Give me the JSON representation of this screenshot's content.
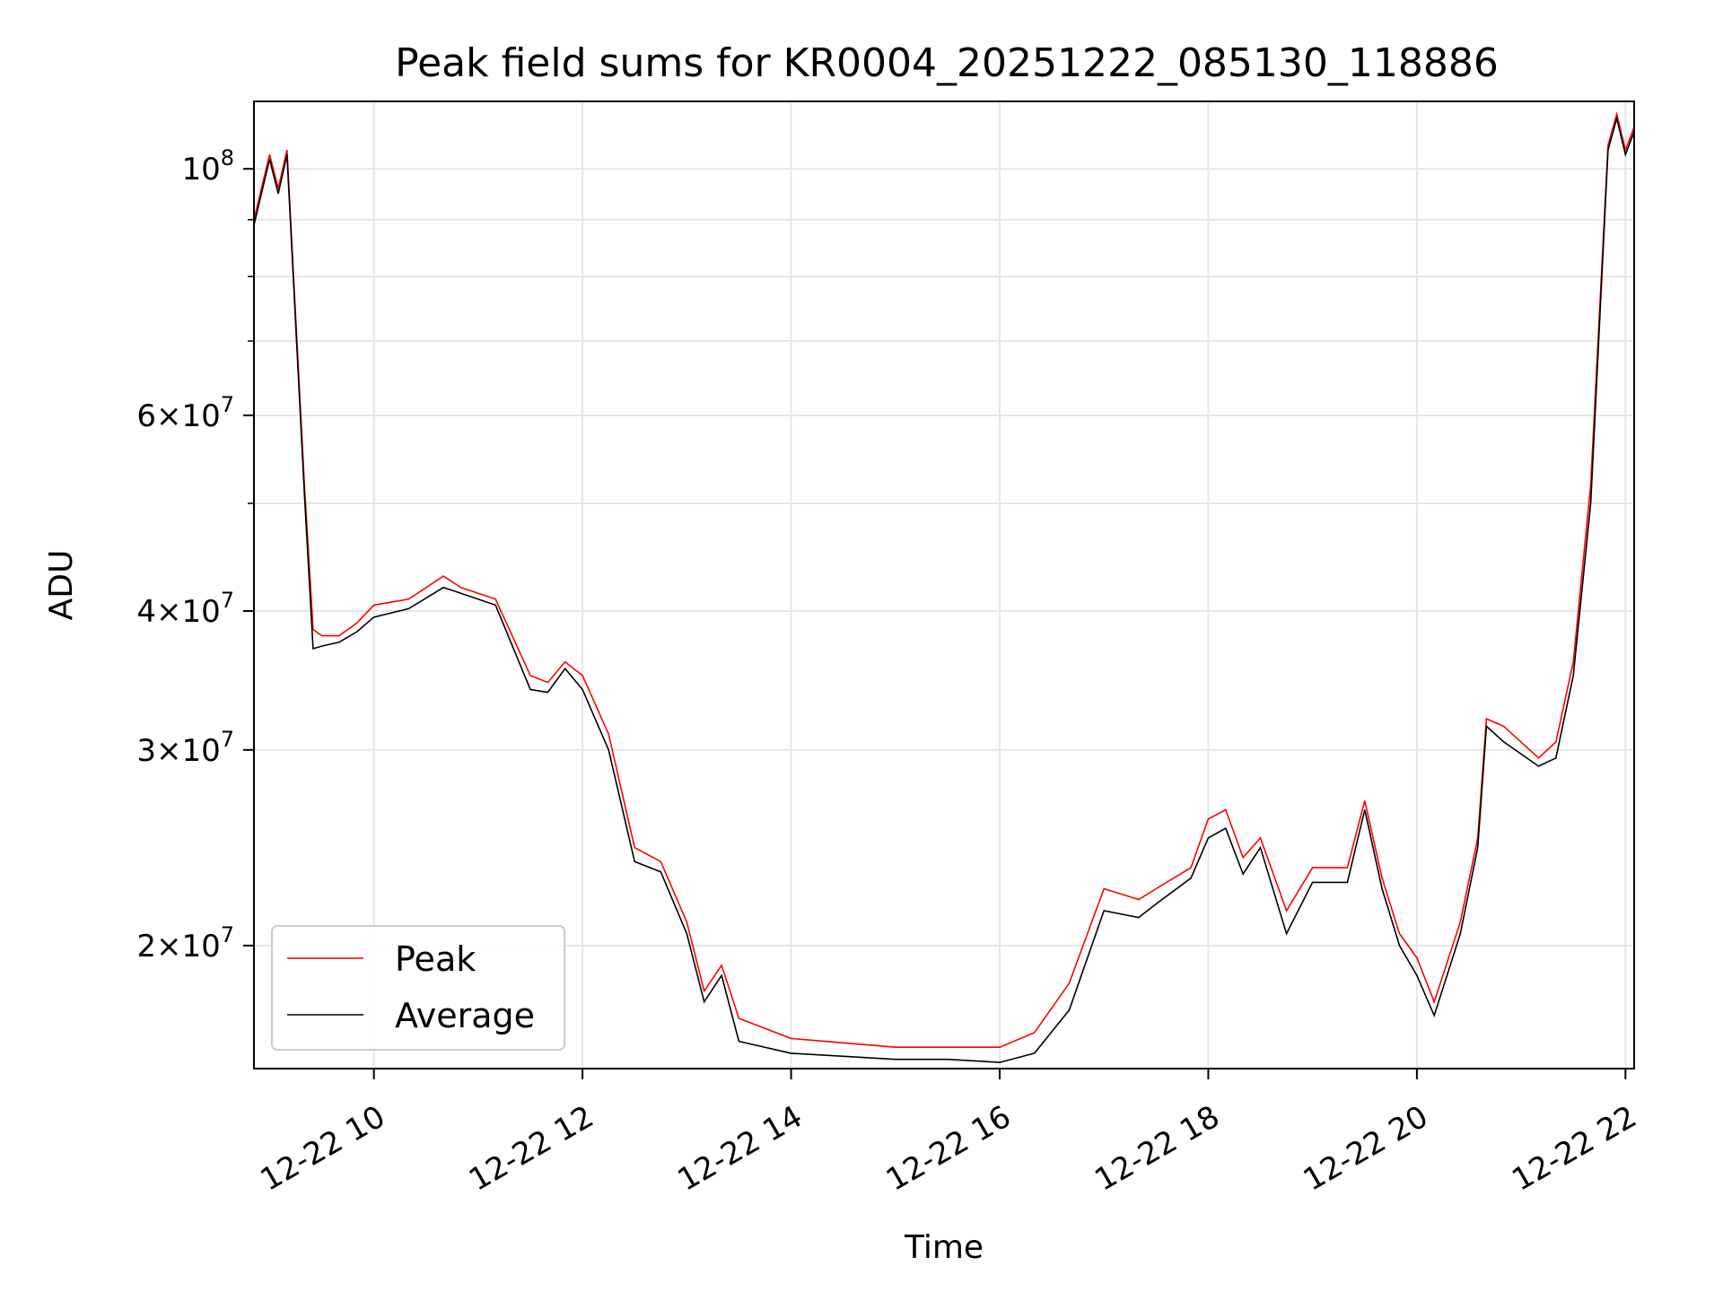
{
  "chart_data": {
    "type": "line",
    "title": "Peak field sums for KR0004_20251222_085130_118886",
    "xlabel": "Time",
    "ylabel": "ADU",
    "yscale": "log",
    "xlim": [
      "12-22 08:51",
      "12-22 22:05"
    ],
    "ylim": [
      15500000,
      115000000
    ],
    "grid": true,
    "legend": "lower-left",
    "x_ticks": [
      {
        "x": "12-22 10:00",
        "label": "12-22 10"
      },
      {
        "x": "12-22 12:00",
        "label": "12-22 12"
      },
      {
        "x": "12-22 14:00",
        "label": "12-22 14"
      },
      {
        "x": "12-22 16:00",
        "label": "12-22 16"
      },
      {
        "x": "12-22 18:00",
        "label": "12-22 18"
      },
      {
        "x": "12-22 20:00",
        "label": "12-22 20"
      },
      {
        "x": "12-22 22:00",
        "label": "12-22 22"
      }
    ],
    "y_ticks": [
      {
        "value": 100000000,
        "base": "10",
        "exp": "8",
        "mant": ""
      },
      {
        "value": 60000000,
        "base": "10",
        "exp": "7",
        "mant": "6"
      },
      {
        "value": 40000000,
        "base": "10",
        "exp": "7",
        "mant": "4"
      },
      {
        "value": 30000000,
        "base": "10",
        "exp": "7",
        "mant": "3"
      },
      {
        "value": 20000000,
        "base": "10",
        "exp": "7",
        "mant": "2"
      }
    ],
    "y_minor_ticks": [
      50000000,
      70000000,
      80000000,
      90000000
    ],
    "x": [
      "12-22 08:51",
      "12-22 09:00",
      "12-22 09:05",
      "12-22 09:10",
      "12-22 09:20",
      "12-22 09:25",
      "12-22 09:30",
      "12-22 09:40",
      "12-22 09:50",
      "12-22 10:00",
      "12-22 10:20",
      "12-22 10:40",
      "12-22 10:50",
      "12-22 11:10",
      "12-22 11:30",
      "12-22 11:40",
      "12-22 11:50",
      "12-22 12:00",
      "12-22 12:15",
      "12-22 12:30",
      "12-22 12:45",
      "12-22 13:00",
      "12-22 13:10",
      "12-22 13:20",
      "12-22 13:30",
      "12-22 14:00",
      "12-22 15:00",
      "12-22 15:30",
      "12-22 16:00",
      "12-22 16:20",
      "12-22 16:40",
      "12-22 17:00",
      "12-22 17:20",
      "12-22 17:30",
      "12-22 17:50",
      "12-22 18:00",
      "12-22 18:10",
      "12-22 18:20",
      "12-22 18:30",
      "12-22 18:45",
      "12-22 19:00",
      "12-22 19:20",
      "12-22 19:30",
      "12-22 19:40",
      "12-22 19:50",
      "12-22 20:00",
      "12-22 20:10",
      "12-22 20:25",
      "12-22 20:35",
      "12-22 20:40",
      "12-22 20:50",
      "12-22 21:10",
      "12-22 21:20",
      "12-22 21:30",
      "12-22 21:40",
      "12-22 21:50",
      "12-22 21:55",
      "12-22 22:00",
      "12-22 22:05"
    ],
    "series": [
      {
        "name": "Peak",
        "color": "#ff0000",
        "values": [
          90000000,
          103000000,
          96000000,
          104000000,
          52000000,
          38500000,
          38000000,
          38000000,
          39000000,
          40500000,
          41000000,
          43000000,
          42000000,
          41000000,
          35000000,
          34500000,
          36000000,
          35000000,
          31000000,
          24500000,
          23800000,
          21000000,
          18200000,
          19200000,
          17200000,
          16500000,
          16200000,
          16200000,
          16200000,
          16700000,
          18500000,
          22500000,
          22000000,
          22500000,
          23500000,
          26000000,
          26500000,
          24000000,
          25000000,
          21500000,
          23500000,
          23500000,
          27000000,
          23000000,
          20500000,
          19500000,
          17800000,
          21000000,
          25000000,
          32000000,
          31500000,
          29500000,
          30500000,
          36000000,
          52000000,
          105000000,
          112000000,
          104000000,
          109000000
        ]
      },
      {
        "name": "Average",
        "color": "#000000",
        "values": [
          89000000,
          102000000,
          95000000,
          103000000,
          51000000,
          37000000,
          37200000,
          37500000,
          38300000,
          39500000,
          40200000,
          42000000,
          41500000,
          40500000,
          34000000,
          33800000,
          35500000,
          34000000,
          30000000,
          23800000,
          23300000,
          20500000,
          17800000,
          18800000,
          16400000,
          16000000,
          15800000,
          15800000,
          15700000,
          16000000,
          17500000,
          21500000,
          21200000,
          21800000,
          23000000,
          25000000,
          25500000,
          23200000,
          24500000,
          20500000,
          22800000,
          22800000,
          26500000,
          22500000,
          20000000,
          18800000,
          17300000,
          20500000,
          24500000,
          31500000,
          30500000,
          29000000,
          29500000,
          35000000,
          50000000,
          104000000,
          111000000,
          103000000,
          108000000
        ]
      }
    ]
  }
}
